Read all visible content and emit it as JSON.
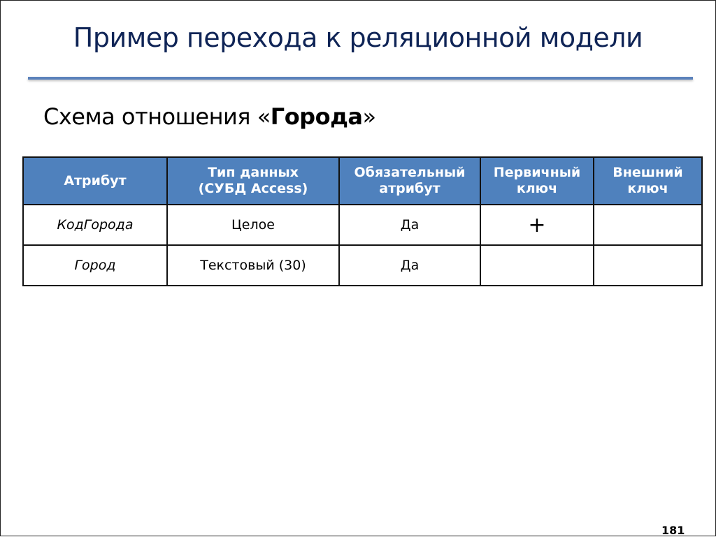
{
  "slide": {
    "title": "Пример перехода к реляционной модели",
    "subtitle_prefix": "Схема отношения «",
    "subtitle_bold": "Города",
    "subtitle_suffix": "»",
    "page_number": "181",
    "colors": {
      "title": "#0f2456",
      "header_bg": "#4f81bd",
      "rule": "#5b82bb"
    }
  },
  "table": {
    "headers": [
      {
        "line1": "Атрибут",
        "line2": ""
      },
      {
        "line1": "Тип данных",
        "line2": "(СУБД Access)"
      },
      {
        "line1": "Обязательный",
        "line2": "атрибут"
      },
      {
        "line1": "Первичный",
        "line2": "ключ"
      },
      {
        "line1": "Внешний",
        "line2": "ключ"
      }
    ],
    "rows": [
      [
        "КодГорода",
        "Целое",
        "Да",
        "+",
        ""
      ],
      [
        "Город",
        "Текстовый (30)",
        "Да",
        "",
        ""
      ]
    ]
  }
}
